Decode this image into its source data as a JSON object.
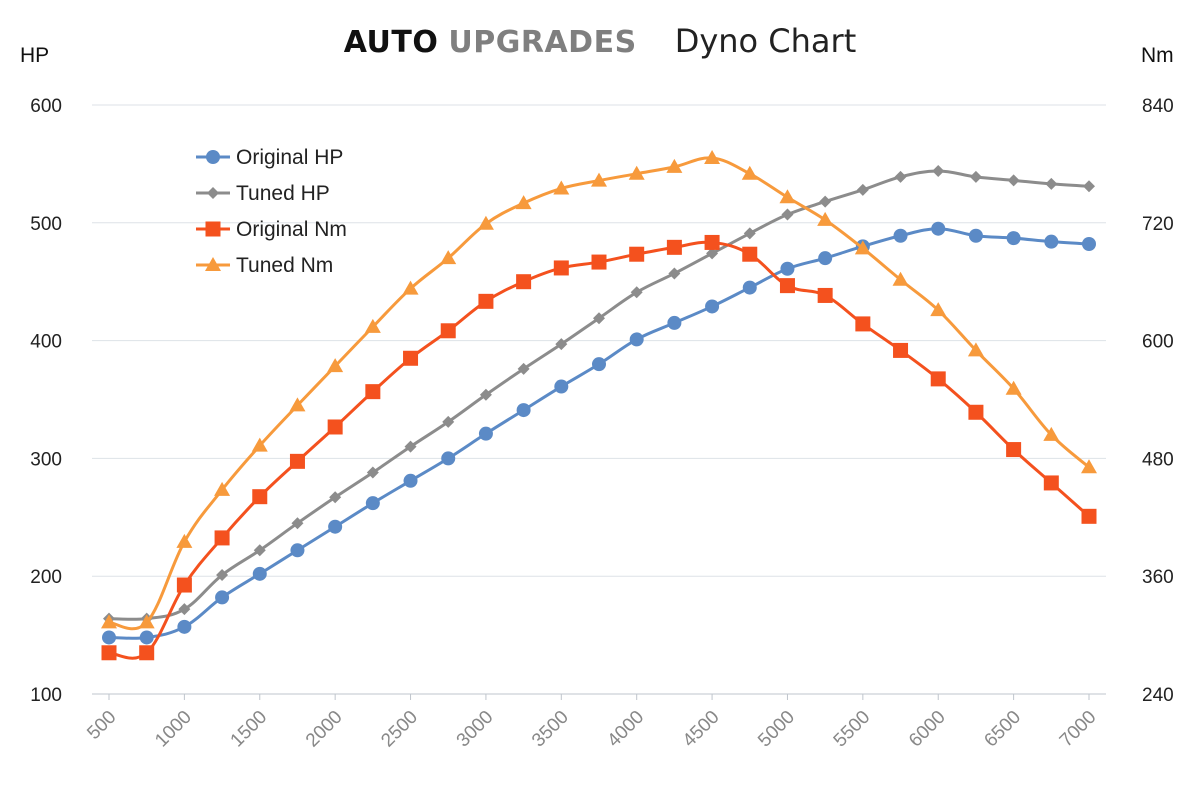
{
  "brand": {
    "part1": "AUTO",
    "part2": "UPGRADES"
  },
  "chart_data": {
    "type": "line",
    "title": "Dyno Chart",
    "xlabel": "",
    "y_left_label": "HP",
    "y_right_label": "Nm",
    "x": [
      500,
      750,
      1000,
      1250,
      1500,
      1750,
      2000,
      2250,
      2500,
      2750,
      3000,
      3250,
      3500,
      3750,
      4000,
      4250,
      4500,
      4750,
      5000,
      5250,
      5500,
      5750,
      6000,
      6250,
      6500,
      6750,
      7000
    ],
    "x_ticks": [
      500,
      1000,
      1500,
      2000,
      2500,
      3000,
      3500,
      4000,
      4500,
      5000,
      5500,
      6000,
      6500,
      7000
    ],
    "y_left_ticks": [
      100,
      200,
      300,
      400,
      500,
      600
    ],
    "y_right_ticks": [
      240,
      360,
      480,
      600,
      720,
      840
    ],
    "ylim_left": [
      100,
      600
    ],
    "ylim_right": [
      240,
      840
    ],
    "legend_position": "top-left",
    "series": [
      {
        "name": "Original HP",
        "axis": "left",
        "color": "#5b8ac6",
        "marker": "circle",
        "values": [
          148,
          148,
          157,
          182,
          202,
          222,
          242,
          262,
          281,
          300,
          321,
          341,
          361,
          380,
          401,
          415,
          429,
          445,
          461,
          470,
          480,
          489,
          495,
          489,
          487,
          484,
          482
        ]
      },
      {
        "name": "Tuned HP",
        "axis": "left",
        "color": "#8c8c8c",
        "marker": "diamond",
        "values": [
          164,
          164,
          172,
          201,
          222,
          245,
          267,
          288,
          310,
          331,
          354,
          376,
          397,
          419,
          441,
          457,
          474,
          491,
          507,
          518,
          528,
          539,
          544,
          539,
          536,
          533,
          531
        ]
      },
      {
        "name": "Original Nm",
        "axis": "right",
        "color": "#f4511e",
        "marker": "square",
        "values": [
          282,
          282,
          351,
          399,
          441,
          477,
          512,
          548,
          582,
          610,
          640,
          660,
          674,
          680,
          688,
          695,
          700,
          688,
          656,
          646,
          617,
          590,
          561,
          527,
          489,
          455,
          421
        ]
      },
      {
        "name": "Tuned Nm",
        "axis": "right",
        "color": "#f79a3c",
        "marker": "triangle",
        "values": [
          313,
          313,
          395,
          448,
          493,
          534,
          574,
          614,
          653,
          684,
          719,
          740,
          755,
          763,
          770,
          777,
          786,
          770,
          746,
          723,
          694,
          662,
          631,
          590,
          551,
          504,
          471
        ]
      }
    ]
  }
}
